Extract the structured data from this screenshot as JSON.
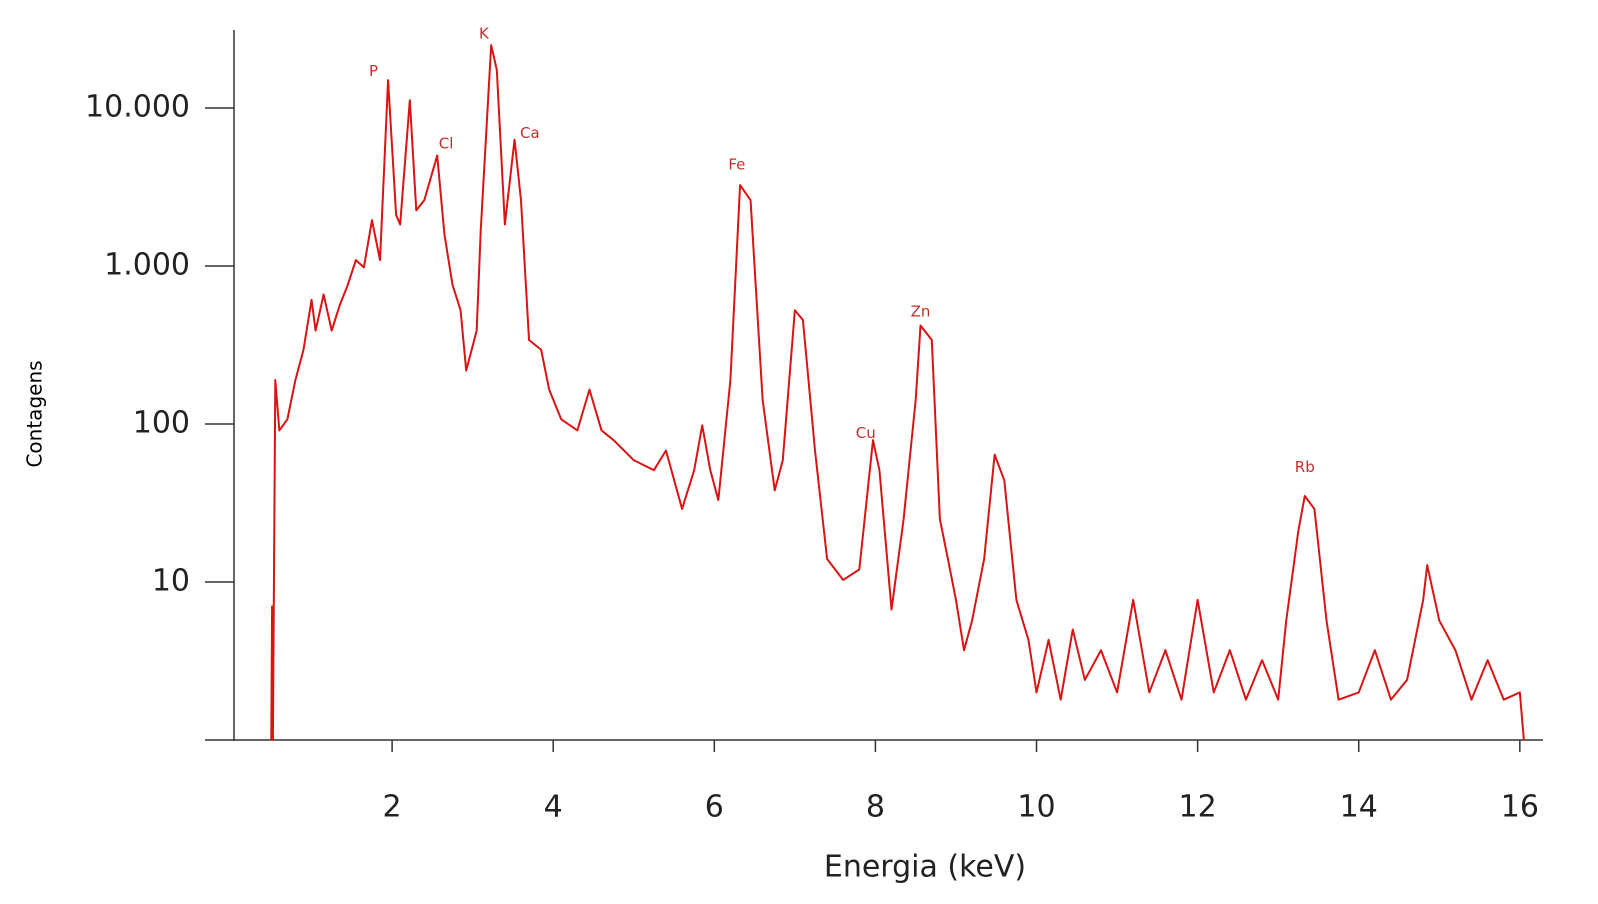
{
  "chart_data": {
    "type": "line",
    "yscale": "log",
    "color": "#d81414",
    "xlabel": "Energia (keV)",
    "ylabel": "Contagens",
    "xlim": [
      0,
      16.3
    ],
    "ylim": [
      1,
      30000
    ],
    "xticks": [
      2,
      4,
      6,
      8,
      10,
      12,
      14,
      16
    ],
    "yticks": [
      10,
      100,
      {
        "value": 1000,
        "label": "1.000"
      },
      {
        "value": 10000,
        "label": "10.000"
      }
    ],
    "x": [
      0.5,
      0.51,
      0.52,
      0.55,
      0.6,
      0.7,
      0.8,
      0.9,
      1.0,
      1.05,
      1.15,
      1.25,
      1.35,
      1.45,
      1.55,
      1.65,
      1.75,
      1.85,
      1.95,
      2.05,
      2.1,
      2.22,
      2.3,
      2.4,
      2.56,
      2.65,
      2.75,
      2.85,
      2.92,
      3.05,
      3.1,
      3.23,
      3.3,
      3.4,
      3.52,
      3.6,
      3.7,
      3.85,
      3.95,
      4.1,
      4.3,
      4.45,
      4.6,
      4.75,
      5.0,
      5.25,
      5.4,
      5.6,
      5.75,
      5.85,
      5.95,
      6.05,
      6.2,
      6.32,
      6.45,
      6.6,
      6.75,
      6.85,
      7.0,
      7.1,
      7.25,
      7.4,
      7.6,
      7.8,
      7.97,
      8.05,
      8.2,
      8.35,
      8.5,
      8.56,
      8.7,
      8.8,
      8.9,
      9.0,
      9.1,
      9.2,
      9.35,
      9.48,
      9.6,
      9.75,
      9.9,
      10.0,
      10.15,
      10.3,
      10.45,
      10.6,
      10.8,
      11.0,
      11.2,
      11.4,
      11.6,
      11.8,
      12.0,
      12.2,
      12.4,
      12.6,
      12.8,
      13.0,
      13.1,
      13.25,
      13.33,
      13.45,
      13.6,
      13.75,
      14.0,
      14.2,
      14.4,
      14.6,
      14.8,
      14.85,
      15.0,
      15.2,
      15.4,
      15.6,
      15.8,
      16.0,
      16.05
    ],
    "values": [
      1,
      7,
      1,
      190,
      91,
      107,
      190,
      295,
      610,
      390,
      660,
      390,
      565,
      760,
      1090,
      980,
      1950,
      1090,
      15000,
      2100,
      1830,
      11200,
      2250,
      2610,
      5000,
      1580,
      760,
      525,
      218,
      390,
      1670,
      25000,
      17400,
      1830,
      6300,
      2610,
      340,
      295,
      165,
      107,
      91,
      165,
      91,
      79,
      59,
      51,
      68,
      29,
      51,
      98,
      51,
      33,
      190,
      3250,
      2610,
      142,
      38,
      59,
      525,
      455,
      68,
      14,
      10.3,
      12,
      79,
      51,
      6.7,
      25,
      142,
      420,
      340,
      25,
      14,
      7.7,
      3.7,
      5.7,
      14,
      64,
      44,
      7.7,
      4.3,
      2,
      4.3,
      1.8,
      5,
      2.4,
      3.7,
      2,
      7.7,
      2,
      3.7,
      1.8,
      7.7,
      2,
      3.7,
      1.8,
      3.2,
      1.8,
      5.7,
      21,
      35,
      29,
      5.7,
      1.8,
      2,
      3.7,
      1.8,
      2.4,
      7.7,
      12.8,
      5.7,
      3.7,
      1.8,
      3.2,
      1.8,
      2,
      1
    ],
    "annotations": [
      {
        "text": "P",
        "x": 1.77,
        "y": 17000
      },
      {
        "text": "Cl",
        "x": 2.67,
        "y": 5900
      },
      {
        "text": "K",
        "x": 3.14,
        "y": 29500
      },
      {
        "text": "Ca",
        "x": 3.71,
        "y": 6900
      },
      {
        "text": "Fe",
        "x": 6.28,
        "y": 4350
      },
      {
        "text": "Cu",
        "x": 7.88,
        "y": 87
      },
      {
        "text": "Zn",
        "x": 8.56,
        "y": 510
      },
      {
        "text": "Rb",
        "x": 13.33,
        "y": 53
      }
    ]
  }
}
